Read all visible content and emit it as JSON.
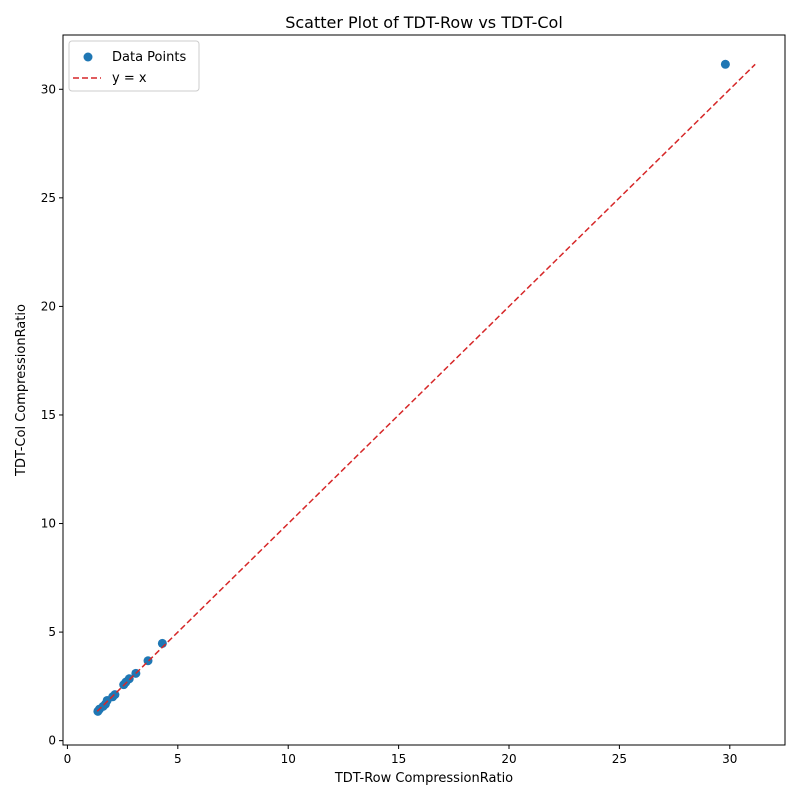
{
  "chart_data": {
    "type": "scatter",
    "title": "Scatter Plot of TDT-Row vs TDT-Col",
    "xlabel": "TDT-Row CompressionRatio",
    "ylabel": "TDT-Col CompressionRatio",
    "xlim": [
      -0.2,
      32.5
    ],
    "ylim": [
      -0.2,
      32.5
    ],
    "xticks": [
      0,
      5,
      10,
      15,
      20,
      25,
      30
    ],
    "yticks": [
      0,
      5,
      10,
      15,
      20,
      25,
      30
    ],
    "grid": false,
    "legend_position": "top-left",
    "series": [
      {
        "name": "Data Points",
        "kind": "scatter",
        "color": "#1f77b4",
        "points": [
          {
            "x": 1.38,
            "y": 1.35
          },
          {
            "x": 1.45,
            "y": 1.45
          },
          {
            "x": 1.62,
            "y": 1.58
          },
          {
            "x": 1.72,
            "y": 1.68
          },
          {
            "x": 1.8,
            "y": 1.85
          },
          {
            "x": 2.05,
            "y": 2.02
          },
          {
            "x": 2.15,
            "y": 2.12
          },
          {
            "x": 2.55,
            "y": 2.58
          },
          {
            "x": 2.65,
            "y": 2.7
          },
          {
            "x": 2.8,
            "y": 2.85
          },
          {
            "x": 3.1,
            "y": 3.1
          },
          {
            "x": 3.65,
            "y": 3.68
          },
          {
            "x": 4.3,
            "y": 4.48
          },
          {
            "x": 29.8,
            "y": 31.15
          }
        ]
      },
      {
        "name": "y = x",
        "kind": "line",
        "style": "dashed",
        "color": "#d62728",
        "points": [
          {
            "x": 1.35,
            "y": 1.35
          },
          {
            "x": 31.15,
            "y": 31.15
          }
        ]
      }
    ]
  }
}
